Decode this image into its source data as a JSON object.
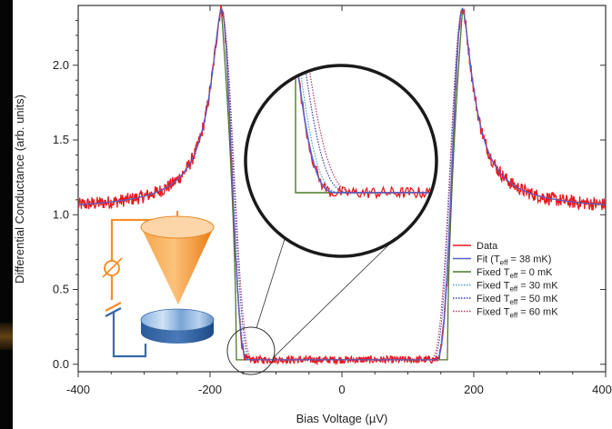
{
  "chart_data": {
    "type": "line",
    "xlabel": "Bias Voltage (µV)",
    "ylabel": "Differential Conductance (arb. units)",
    "xlim": [
      -400,
      400
    ],
    "ylim": [
      -0.05,
      2.4
    ],
    "x_ticks": [
      -400,
      -200,
      0,
      200,
      400
    ],
    "x_tick_labels": [
      "-400",
      "-200",
      "0",
      "200",
      "400"
    ],
    "y_ticks": [
      0.0,
      0.5,
      1.0,
      1.5,
      2.0
    ],
    "y_tick_labels": [
      "0.0",
      "0.5",
      "1.0",
      "1.5",
      "2.0"
    ],
    "gap_edge_uV": 160,
    "peak_position_uV": 183,
    "peak_value": 2.38,
    "baseline_in_gap": 0.03,
    "value_at_edges": 1.1,
    "legend_position": "lower-right",
    "series": [
      {
        "name": "Data",
        "color": "#e8191f",
        "style": "solid",
        "noisy": true
      },
      {
        "name": "Fit",
        "subscript": "eff",
        "suffix": " = 38 mK)",
        "prefix": "Fit  (T",
        "color": "#5a5fc8",
        "style": "solid"
      },
      {
        "name": "Fixed T",
        "subscript": "eff",
        "suffix": " = 0 mK",
        "color": "#4a7a2a",
        "style": "solid"
      },
      {
        "name": "Fixed T",
        "subscript": "eff",
        "suffix": " = 30 mK",
        "color": "#4aa0c8",
        "style": "dotted"
      },
      {
        "name": "Fixed T",
        "subscript": "eff",
        "suffix": " = 50 mK",
        "color": "#3a3ab0",
        "style": "dotted"
      },
      {
        "name": "Fixed T",
        "subscript": "eff",
        "suffix": " = 60 mK",
        "color": "#b03a6a",
        "style": "dotted"
      }
    ],
    "inset": {
      "type": "magnified-zoom",
      "region_x": [
        -175,
        -110
      ],
      "region_y": [
        -0.02,
        0.3
      ]
    }
  },
  "illustration": {
    "description_icons": [
      "stm-tip-cone-icon",
      "sample-disk-icon",
      "circuit-wire-icon",
      "bias-source-icon"
    ],
    "colors": {
      "tip": "#f5902a",
      "sample": "#5a8ac8",
      "wire_tip": "#f5902a",
      "wire_sample": "#3a6aa8"
    }
  }
}
